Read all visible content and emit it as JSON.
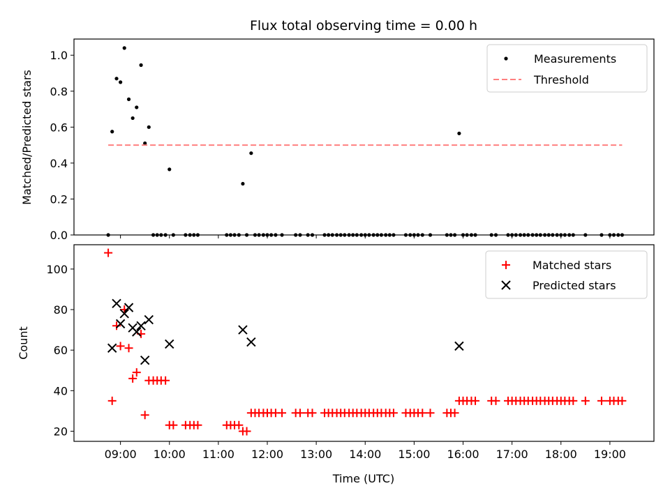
{
  "chart_data": [
    {
      "type": "scatter",
      "title": "Flux total observing time = 0.00 h",
      "xlabel": "",
      "ylabel": "Matched/Predicted stars",
      "xlim_hours": [
        8.05,
        19.9
      ],
      "ylim": [
        0,
        1.09
      ],
      "yticks": [
        0.0,
        0.2,
        0.4,
        0.6,
        0.8,
        1.0
      ],
      "ytick_labels": [
        "0.0",
        "0.2",
        "0.4",
        "0.6",
        "0.8",
        "1.0"
      ],
      "legend": "upper right",
      "series": [
        {
          "name": "Measurements",
          "kind": "scatter",
          "color": "#000000",
          "points": [
            [
              8.75,
              0.0
            ],
            [
              8.83,
              0.575
            ],
            [
              8.92,
              0.87
            ],
            [
              9.0,
              0.85
            ],
            [
              9.08,
              1.04
            ],
            [
              9.17,
              0.755
            ],
            [
              9.25,
              0.65
            ],
            [
              9.33,
              0.71
            ],
            [
              9.42,
              0.945
            ],
            [
              9.5,
              0.51
            ],
            [
              9.58,
              0.6
            ],
            [
              9.67,
              0.0
            ],
            [
              9.75,
              0.0
            ],
            [
              9.83,
              0.0
            ],
            [
              9.92,
              0.0
            ],
            [
              10.0,
              0.365
            ],
            [
              10.08,
              0.0
            ],
            [
              10.33,
              0.0
            ],
            [
              10.42,
              0.0
            ],
            [
              10.5,
              0.0
            ],
            [
              10.58,
              0.0
            ],
            [
              11.17,
              0.0
            ],
            [
              11.25,
              0.0
            ],
            [
              11.33,
              0.0
            ],
            [
              11.42,
              0.0
            ],
            [
              11.5,
              0.285
            ],
            [
              11.58,
              0.0
            ],
            [
              11.67,
              0.455
            ],
            [
              11.75,
              0.0
            ],
            [
              11.83,
              0.0
            ],
            [
              11.92,
              0.0
            ],
            [
              12.0,
              0.0
            ],
            [
              12.08,
              0.0
            ],
            [
              12.17,
              0.0
            ],
            [
              12.3,
              0.0
            ],
            [
              12.58,
              0.0
            ],
            [
              12.67,
              0.0
            ],
            [
              12.83,
              0.0
            ],
            [
              12.92,
              0.0
            ],
            [
              13.17,
              0.0
            ],
            [
              13.25,
              0.0
            ],
            [
              13.33,
              0.0
            ],
            [
              13.42,
              0.0
            ],
            [
              13.5,
              0.0
            ],
            [
              13.58,
              0.0
            ],
            [
              13.67,
              0.0
            ],
            [
              13.75,
              0.0
            ],
            [
              13.83,
              0.0
            ],
            [
              13.92,
              0.0
            ],
            [
              14.0,
              0.0
            ],
            [
              14.08,
              0.0
            ],
            [
              14.17,
              0.0
            ],
            [
              14.25,
              0.0
            ],
            [
              14.33,
              0.0
            ],
            [
              14.42,
              0.0
            ],
            [
              14.5,
              0.0
            ],
            [
              14.58,
              0.0
            ],
            [
              14.83,
              0.0
            ],
            [
              14.92,
              0.0
            ],
            [
              15.0,
              0.0
            ],
            [
              15.08,
              0.0
            ],
            [
              15.17,
              0.0
            ],
            [
              15.33,
              0.0
            ],
            [
              15.67,
              0.0
            ],
            [
              15.75,
              0.0
            ],
            [
              15.83,
              0.0
            ],
            [
              15.92,
              0.565
            ],
            [
              16.0,
              0.0
            ],
            [
              16.08,
              0.0
            ],
            [
              16.17,
              0.0
            ],
            [
              16.25,
              0.0
            ],
            [
              16.58,
              0.0
            ],
            [
              16.67,
              0.0
            ],
            [
              16.92,
              0.0
            ],
            [
              17.0,
              0.0
            ],
            [
              17.08,
              0.0
            ],
            [
              17.17,
              0.0
            ],
            [
              17.25,
              0.0
            ],
            [
              17.33,
              0.0
            ],
            [
              17.42,
              0.0
            ],
            [
              17.5,
              0.0
            ],
            [
              17.58,
              0.0
            ],
            [
              17.67,
              0.0
            ],
            [
              17.75,
              0.0
            ],
            [
              17.83,
              0.0
            ],
            [
              17.92,
              0.0
            ],
            [
              18.0,
              0.0
            ],
            [
              18.08,
              0.0
            ],
            [
              18.17,
              0.0
            ],
            [
              18.25,
              0.0
            ],
            [
              18.5,
              0.0
            ],
            [
              18.83,
              0.0
            ],
            [
              19.0,
              0.0
            ],
            [
              19.08,
              0.0
            ],
            [
              19.17,
              0.0
            ],
            [
              19.25,
              0.0
            ]
          ]
        },
        {
          "name": "Threshold",
          "kind": "dashed-line",
          "color": "#ff7f7f",
          "points": [
            [
              8.75,
              0.5
            ],
            [
              19.25,
              0.5
            ]
          ]
        }
      ]
    },
    {
      "type": "scatter",
      "title": "",
      "xlabel": "Time (UTC)",
      "ylabel": "Count",
      "xlim_hours": [
        8.05,
        19.9
      ],
      "ylim": [
        15,
        112
      ],
      "yticks": [
        20,
        40,
        60,
        80,
        100
      ],
      "ytick_labels": [
        "20",
        "40",
        "60",
        "80",
        "100"
      ],
      "xticks": [
        9,
        10,
        11,
        12,
        13,
        14,
        15,
        16,
        17,
        18,
        19
      ],
      "xtick_labels": [
        "09:00",
        "10:00",
        "11:00",
        "12:00",
        "13:00",
        "14:00",
        "15:00",
        "16:00",
        "17:00",
        "18:00",
        "19:00"
      ],
      "legend": "upper right",
      "series": [
        {
          "name": "Matched stars",
          "kind": "plus",
          "color": "#ff0000",
          "points": [
            [
              8.75,
              108
            ],
            [
              8.83,
              35
            ],
            [
              8.92,
              72
            ],
            [
              9.0,
              62
            ],
            [
              9.08,
              80
            ],
            [
              9.17,
              61
            ],
            [
              9.25,
              46
            ],
            [
              9.33,
              49
            ],
            [
              9.42,
              68
            ],
            [
              9.5,
              28
            ],
            [
              9.58,
              45
            ],
            [
              9.67,
              45
            ],
            [
              9.75,
              45
            ],
            [
              9.83,
              45
            ],
            [
              9.92,
              45
            ],
            [
              10.0,
              23
            ],
            [
              10.08,
              23
            ],
            [
              10.33,
              23
            ],
            [
              10.42,
              23
            ],
            [
              10.5,
              23
            ],
            [
              10.58,
              23
            ],
            [
              11.17,
              23
            ],
            [
              11.25,
              23
            ],
            [
              11.33,
              23
            ],
            [
              11.42,
              23
            ],
            [
              11.5,
              20
            ],
            [
              11.58,
              20
            ],
            [
              11.67,
              29
            ],
            [
              11.75,
              29
            ],
            [
              11.83,
              29
            ],
            [
              11.92,
              29
            ],
            [
              12.0,
              29
            ],
            [
              12.08,
              29
            ],
            [
              12.17,
              29
            ],
            [
              12.3,
              29
            ],
            [
              12.58,
              29
            ],
            [
              12.67,
              29
            ],
            [
              12.83,
              29
            ],
            [
              12.92,
              29
            ],
            [
              13.17,
              29
            ],
            [
              13.25,
              29
            ],
            [
              13.33,
              29
            ],
            [
              13.42,
              29
            ],
            [
              13.5,
              29
            ],
            [
              13.58,
              29
            ],
            [
              13.67,
              29
            ],
            [
              13.75,
              29
            ],
            [
              13.83,
              29
            ],
            [
              13.92,
              29
            ],
            [
              14.0,
              29
            ],
            [
              14.08,
              29
            ],
            [
              14.17,
              29
            ],
            [
              14.25,
              29
            ],
            [
              14.33,
              29
            ],
            [
              14.42,
              29
            ],
            [
              14.5,
              29
            ],
            [
              14.58,
              29
            ],
            [
              14.83,
              29
            ],
            [
              14.92,
              29
            ],
            [
              15.0,
              29
            ],
            [
              15.08,
              29
            ],
            [
              15.17,
              29
            ],
            [
              15.33,
              29
            ],
            [
              15.67,
              29
            ],
            [
              15.75,
              29
            ],
            [
              15.83,
              29
            ],
            [
              15.92,
              35
            ],
            [
              16.0,
              35
            ],
            [
              16.08,
              35
            ],
            [
              16.17,
              35
            ],
            [
              16.25,
              35
            ],
            [
              16.58,
              35
            ],
            [
              16.67,
              35
            ],
            [
              16.92,
              35
            ],
            [
              17.0,
              35
            ],
            [
              17.08,
              35
            ],
            [
              17.17,
              35
            ],
            [
              17.25,
              35
            ],
            [
              17.33,
              35
            ],
            [
              17.42,
              35
            ],
            [
              17.5,
              35
            ],
            [
              17.58,
              35
            ],
            [
              17.67,
              35
            ],
            [
              17.75,
              35
            ],
            [
              17.83,
              35
            ],
            [
              17.92,
              35
            ],
            [
              18.0,
              35
            ],
            [
              18.08,
              35
            ],
            [
              18.17,
              35
            ],
            [
              18.25,
              35
            ],
            [
              18.5,
              35
            ],
            [
              18.83,
              35
            ],
            [
              19.0,
              35
            ],
            [
              19.08,
              35
            ],
            [
              19.17,
              35
            ],
            [
              19.25,
              35
            ]
          ]
        },
        {
          "name": "Predicted stars",
          "kind": "cross",
          "color": "#000000",
          "points": [
            [
              8.83,
              61
            ],
            [
              8.92,
              83
            ],
            [
              9.0,
              73
            ],
            [
              9.08,
              78
            ],
            [
              9.17,
              81
            ],
            [
              9.25,
              71
            ],
            [
              9.33,
              69
            ],
            [
              9.42,
              72
            ],
            [
              9.5,
              55
            ],
            [
              9.58,
              75
            ],
            [
              10.0,
              63
            ],
            [
              11.5,
              70
            ],
            [
              11.67,
              64
            ],
            [
              15.92,
              62
            ]
          ]
        }
      ]
    }
  ]
}
